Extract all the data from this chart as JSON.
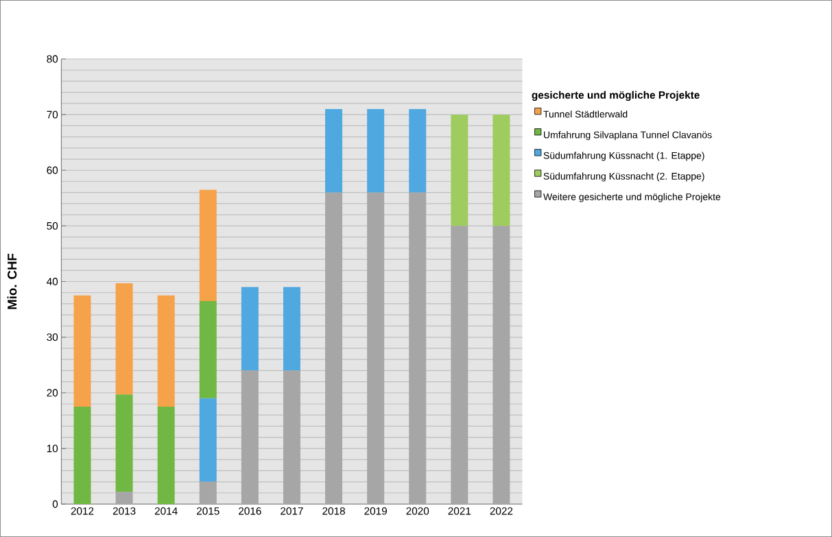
{
  "chart_data": {
    "type": "bar",
    "stacked": true,
    "ylabel": "Mio. CHF",
    "legend_title": "gesicherte und mögliche Projekte",
    "categories": [
      "2012",
      "2013",
      "2014",
      "2015",
      "2016",
      "2017",
      "2018",
      "2019",
      "2020",
      "2021",
      "2022"
    ],
    "series": [
      {
        "name": "Weitere gesicherte und mögliche Projekte",
        "color": "#a6a6a6",
        "values": [
          null,
          2.2,
          null,
          4,
          24,
          24,
          56,
          56,
          56,
          50,
          50
        ]
      },
      {
        "name": "Südumfahrung Küssnacht (2. Etappe)",
        "color": "#9fcc5f",
        "values": [
          null,
          null,
          null,
          null,
          null,
          null,
          null,
          null,
          null,
          20,
          20
        ]
      },
      {
        "name": "Südumfahrung Küssnacht (1. Etappe)",
        "color": "#4fa8e0",
        "values": [
          null,
          null,
          null,
          15,
          15,
          15,
          15,
          15,
          15,
          null,
          null
        ]
      },
      {
        "name": "Umfahrung Silvaplana Tunnel Clavanös",
        "color": "#70b843",
        "values": [
          17.5,
          17.5,
          17.5,
          17.5,
          null,
          null,
          null,
          null,
          null,
          null,
          null
        ]
      },
      {
        "name": "Tunnel Städtlerwald",
        "color": "#f5a24b",
        "values": [
          20,
          20,
          20,
          20,
          null,
          null,
          null,
          null,
          null,
          null,
          null
        ]
      }
    ],
    "ylim": [
      0,
      80
    ],
    "yticks": [
      0,
      10,
      20,
      30,
      40,
      50,
      60,
      70,
      80
    ],
    "grid": "y",
    "legend": "right"
  }
}
